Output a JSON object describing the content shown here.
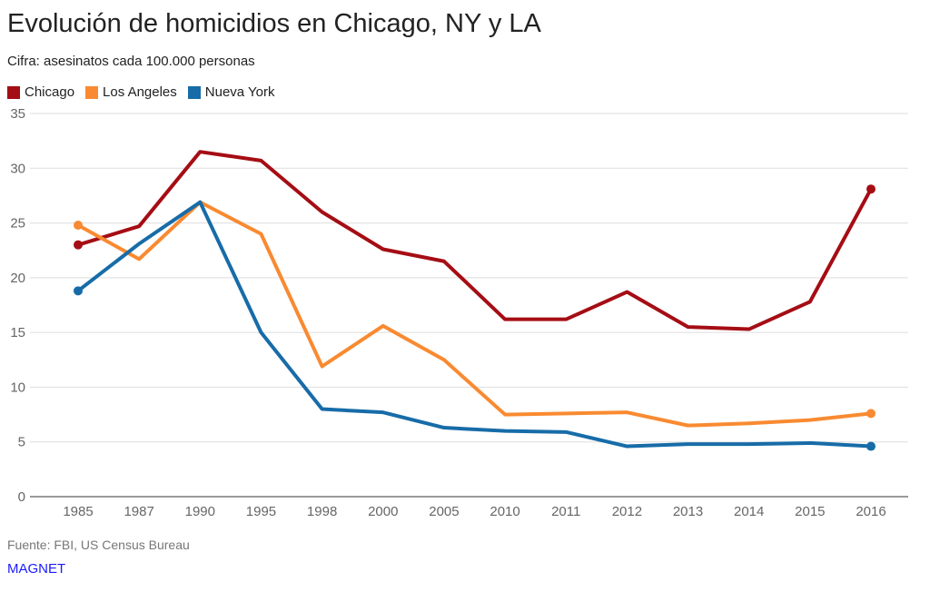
{
  "chart_data": {
    "type": "line",
    "title": "Evolución de homicidios en Chicago, NY y LA",
    "subtitle": "Cifra: asesinatos cada 100.000 personas",
    "categories": [
      "1985",
      "1987",
      "1990",
      "1995",
      "1998",
      "2000",
      "2005",
      "2010",
      "2011",
      "2012",
      "2013",
      "2014",
      "2015",
      "2016"
    ],
    "ylim": [
      0,
      35
    ],
    "yticks": [
      0,
      5,
      10,
      15,
      20,
      25,
      30,
      35
    ],
    "grid": true,
    "legend_placement": "top-left",
    "series": [
      {
        "name": "Chicago",
        "color": "#a50d14",
        "values": [
          23.0,
          24.7,
          31.5,
          30.7,
          26.0,
          22.6,
          21.5,
          16.2,
          16.2,
          18.7,
          15.5,
          15.3,
          17.8,
          28.1
        ]
      },
      {
        "name": "Los Angeles",
        "color": "#f98a31",
        "values": [
          24.8,
          21.7,
          26.9,
          24.0,
          11.9,
          15.6,
          12.5,
          7.5,
          7.6,
          7.7,
          6.5,
          6.7,
          7.0,
          7.6
        ]
      },
      {
        "name": "Nueva York",
        "color": "#176ca8",
        "values": [
          18.8,
          23.1,
          26.9,
          15.0,
          8.0,
          7.7,
          6.3,
          6.0,
          5.9,
          4.6,
          4.8,
          4.8,
          4.9,
          4.6
        ]
      }
    ]
  },
  "footer": {
    "source": "Fuente: FBI, US Census Bureau",
    "brand": "MAGNET"
  }
}
